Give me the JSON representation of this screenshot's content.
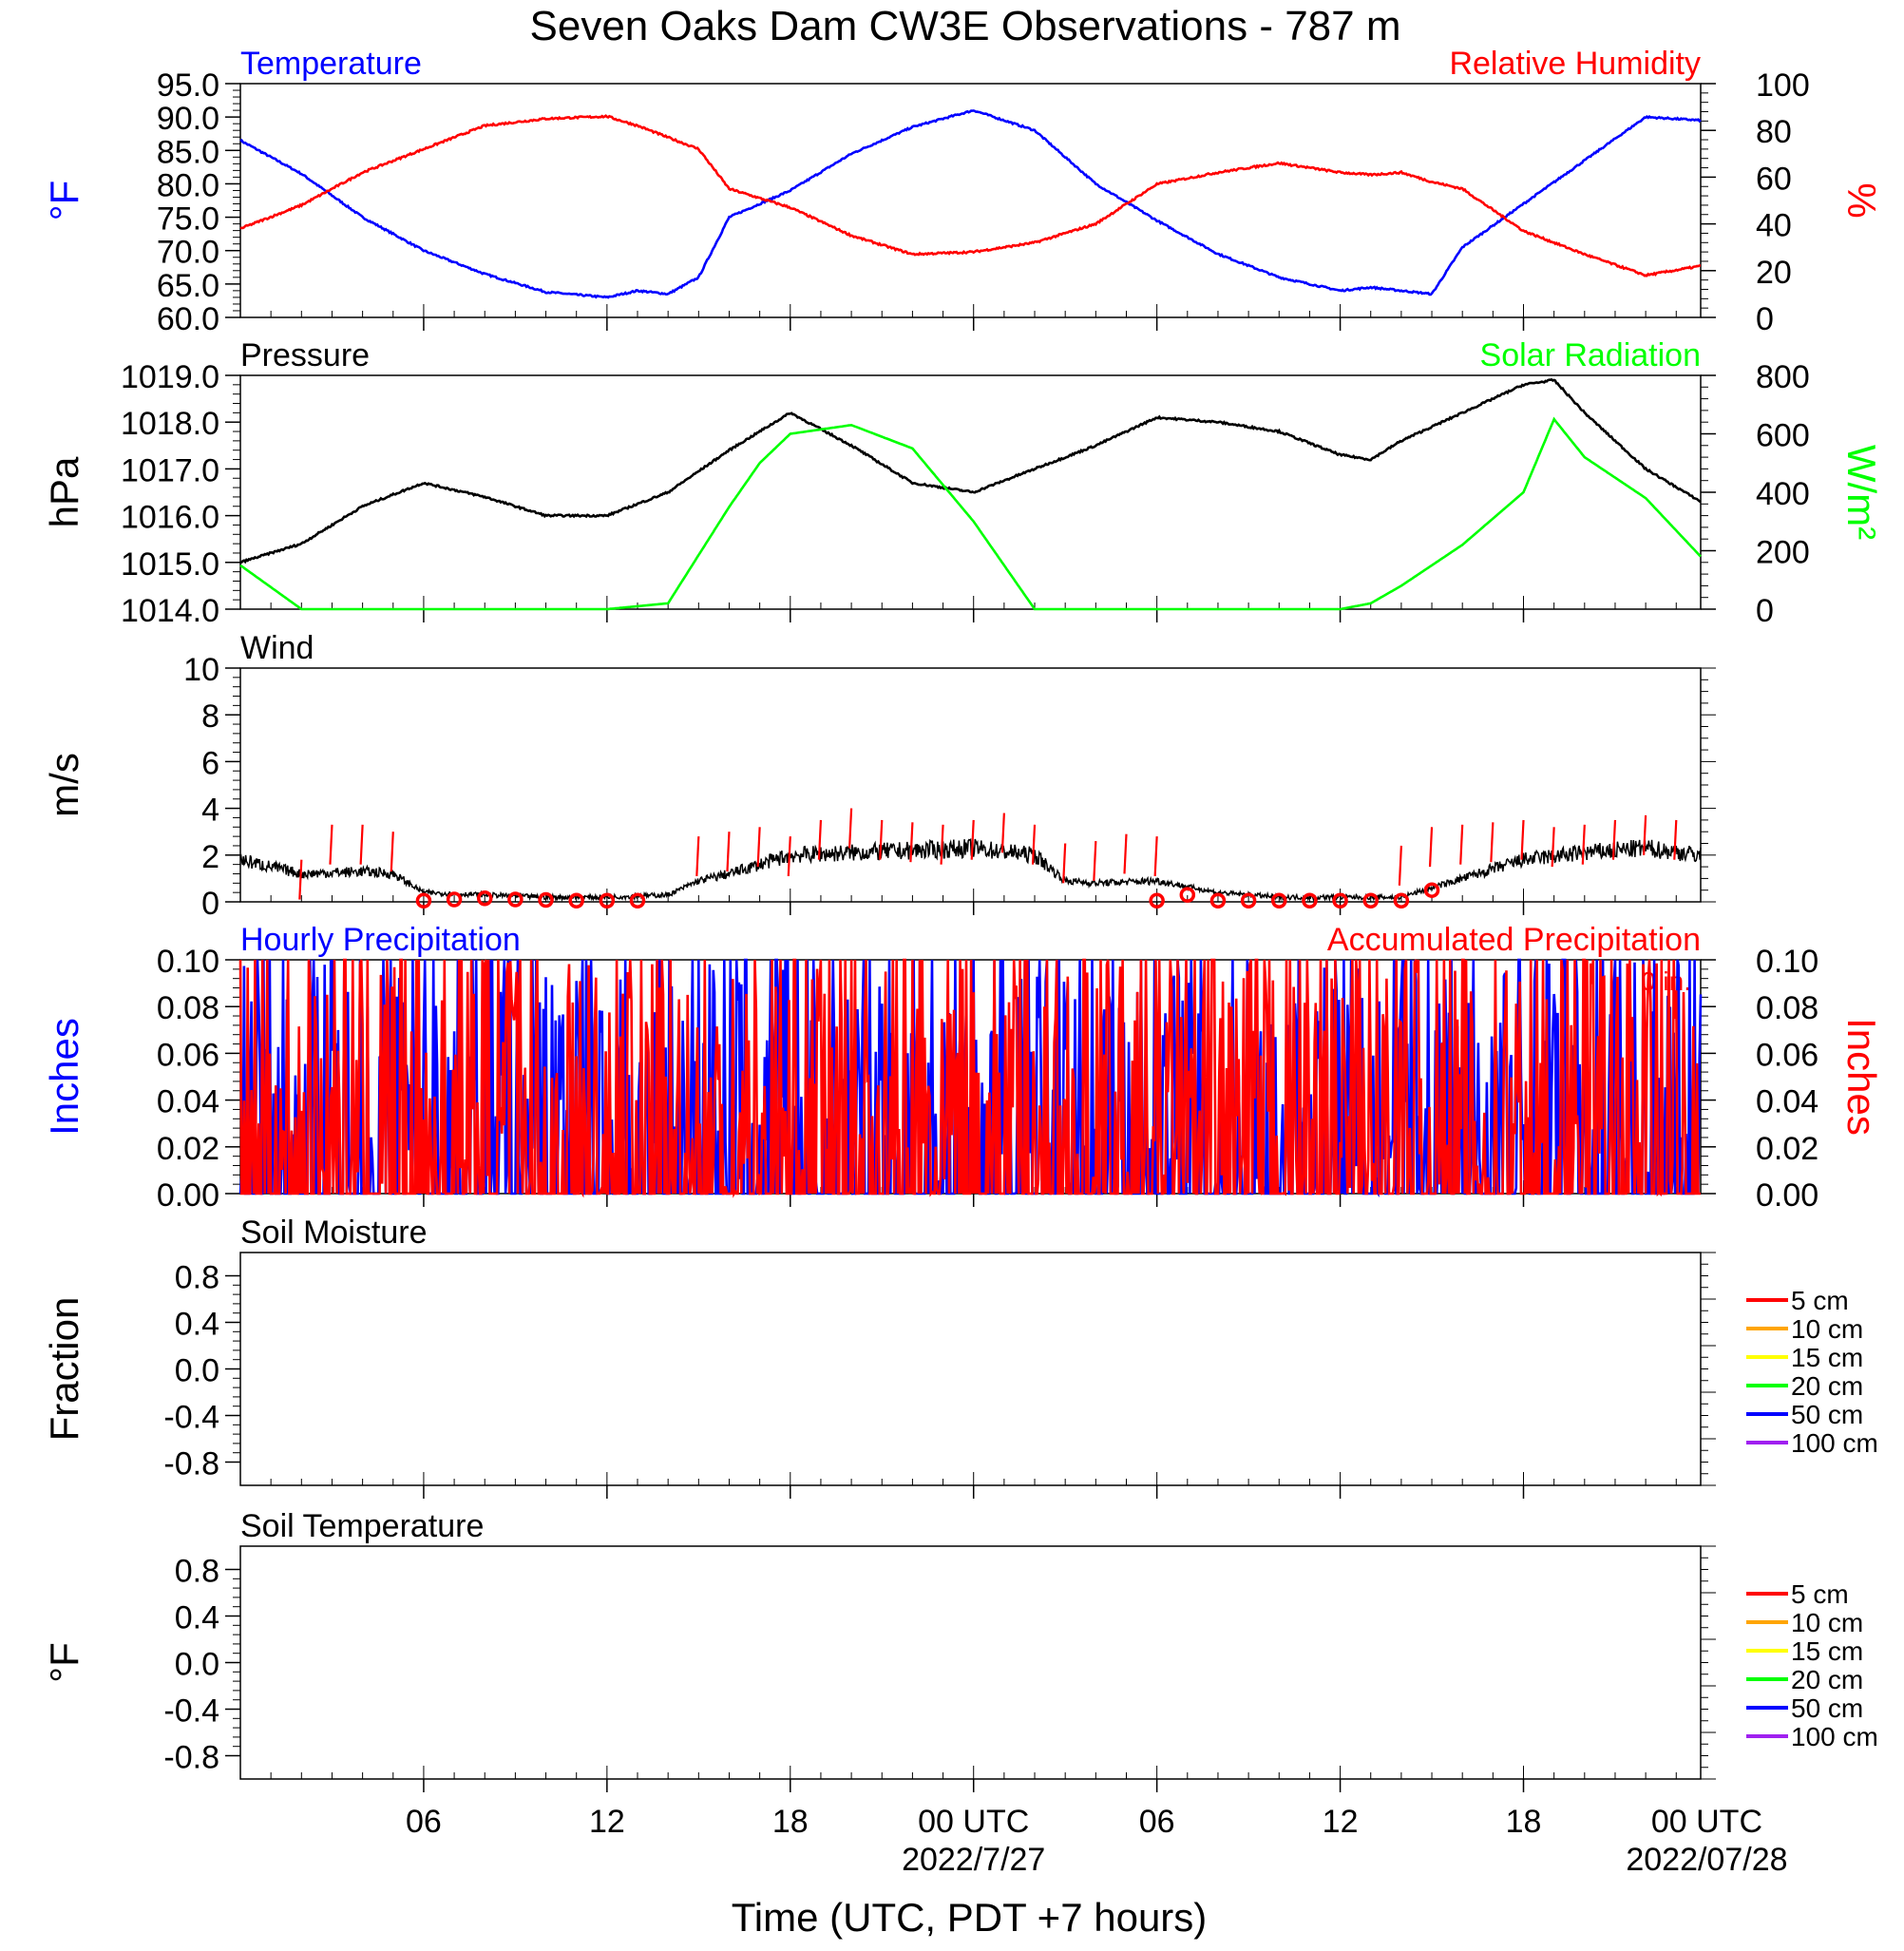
{
  "title": "Seven Oaks Dam CW3E Observations - 787 m",
  "xlabel": "Time (UTC, PDT +7 hours)",
  "x_ticks": [
    {
      "label": "06",
      "date": ""
    },
    {
      "label": "12",
      "date": ""
    },
    {
      "label": "18",
      "date": ""
    },
    {
      "label": "00 UTC",
      "date": "2022/7/27"
    },
    {
      "label": "06",
      "date": ""
    },
    {
      "label": "12",
      "date": ""
    },
    {
      "label": "18",
      "date": ""
    },
    {
      "label": "00 UTC",
      "date": "2022/07/28"
    }
  ],
  "colors": {
    "temperature": "#0000ff",
    "humidity": "#ff0000",
    "pressure": "#000000",
    "solar": "#00ff00",
    "wind": "#000000",
    "gust": "#ff0000",
    "hourly_precip": "#0000ff",
    "accum_precip": "#ff0000"
  },
  "chart_data": [
    {
      "type": "line",
      "left_title": "Temperature",
      "right_title": "Relative Humidity",
      "ylabel_left": "°F",
      "ylabel_right": "%",
      "ylim_left": [
        60.0,
        95.0
      ],
      "ylim_right": [
        0,
        100
      ],
      "yticks_left": [
        "60.0",
        "65.0",
        "70.0",
        "75.0",
        "80.0",
        "85.0",
        "90.0",
        "95.0"
      ],
      "yticks_right": [
        "0",
        "20",
        "40",
        "60",
        "80",
        "100"
      ],
      "x_hours": [
        0,
        2,
        4,
        6,
        8,
        10,
        12,
        13,
        14,
        15,
        16,
        18,
        20,
        22,
        24,
        26,
        28,
        30,
        32,
        34,
        36,
        37,
        38,
        39,
        40,
        42,
        44,
        46,
        47.8
      ],
      "series": [
        {
          "name": "Temperature",
          "axis": "left",
          "values": [
            86.5,
            81.5,
            75.0,
            70.0,
            66.5,
            63.8,
            63.0,
            64.0,
            63.5,
            66.0,
            75.0,
            79.0,
            84.5,
            88.5,
            91.0,
            88.0,
            80.0,
            74.5,
            69.5,
            66.0,
            64.0,
            64.5,
            64.0,
            63.5,
            70.5,
            77.0,
            83.5,
            90.0,
            89.5
          ]
        },
        {
          "name": "Relative Humidity",
          "axis": "right",
          "values": [
            38,
            48,
            62,
            72,
            82,
            85,
            86,
            82,
            77,
            72,
            55,
            47,
            35,
            27,
            28,
            32,
            40,
            57,
            62,
            66,
            62,
            61,
            62,
            58,
            55,
            37,
            27,
            18,
            22
          ]
        }
      ]
    },
    {
      "type": "line",
      "left_title": "Pressure",
      "right_title": "Solar Radiation",
      "ylabel_left": "hPa",
      "ylabel_right": "W/m²",
      "ylim_left": [
        1014.0,
        1019.0
      ],
      "ylim_right": [
        0,
        800
      ],
      "yticks_left": [
        "1014.0",
        "1015.0",
        "1016.0",
        "1017.0",
        "1018.0",
        "1019.0"
      ],
      "yticks_right": [
        "0",
        "200",
        "400",
        "600",
        "800"
      ],
      "x_hours": [
        0,
        2,
        4,
        6,
        8,
        10,
        12,
        14,
        16,
        17,
        18,
        20,
        22,
        24,
        26,
        28,
        30,
        32,
        34,
        36,
        37,
        38,
        40,
        42,
        43,
        44,
        46,
        47.8
      ],
      "series": [
        {
          "name": "Pressure",
          "axis": "left",
          "values": [
            1015.0,
            1015.4,
            1016.2,
            1016.7,
            1016.4,
            1016.0,
            1016.0,
            1016.5,
            1017.4,
            1017.8,
            1018.2,
            1017.5,
            1016.7,
            1016.5,
            1017.0,
            1017.5,
            1018.1,
            1018.0,
            1017.8,
            1017.3,
            1017.2,
            1017.6,
            1018.2,
            1018.8,
            1018.9,
            1018.2,
            1017.0,
            1016.3
          ]
        },
        {
          "name": "Solar Radiation",
          "axis": "right",
          "values": [
            150,
            0,
            0,
            0,
            0,
            0,
            0,
            20,
            350,
            500,
            600,
            630,
            550,
            300,
            0,
            0,
            0,
            0,
            0,
            0,
            20,
            80,
            220,
            400,
            650,
            520,
            380,
            180
          ]
        }
      ]
    },
    {
      "type": "line",
      "left_title": "Wind",
      "ylabel_left": "m/s",
      "ylim_left": [
        0,
        10
      ],
      "yticks_left": [
        "0",
        "2",
        "4",
        "6",
        "8",
        "10"
      ],
      "x_hours": [
        0,
        2,
        4,
        5,
        6,
        8,
        10,
        12,
        14,
        15,
        16,
        18,
        20,
        22,
        24,
        26,
        27,
        28,
        30,
        32,
        34,
        36,
        38,
        39,
        40,
        42,
        44,
        46,
        47.8
      ],
      "series": [
        {
          "name": "Wind speed",
          "axis": "left",
          "values": [
            1.8,
            1.2,
            1.3,
            1.2,
            0.4,
            0.3,
            0.2,
            0.2,
            0.3,
            0.9,
            1.2,
            2.0,
            2.1,
            2.2,
            2.3,
            2.0,
            0.9,
            0.8,
            0.9,
            0.4,
            0.2,
            0.2,
            0.2,
            0.6,
            1.0,
            1.8,
            2.1,
            2.3,
            2.0
          ]
        }
      ],
      "gust_hours": [
        2,
        3,
        4,
        5,
        15,
        16,
        17,
        18,
        19,
        20,
        21,
        22,
        23,
        24,
        25,
        26,
        27,
        28,
        29,
        30,
        38,
        39,
        40,
        41,
        42,
        43,
        44,
        45,
        46,
        47
      ],
      "gusts": [
        1.8,
        3.3,
        3.3,
        3.0,
        2.8,
        3.0,
        3.2,
        2.8,
        3.5,
        4.0,
        3.5,
        3.4,
        3.3,
        3.5,
        3.8,
        3.3,
        2.5,
        2.6,
        2.9,
        2.8,
        2.4,
        3.2,
        3.3,
        3.4,
        3.5,
        3.2,
        3.3,
        3.5,
        3.7,
        3.5
      ],
      "calm_hours": [
        6,
        7,
        8,
        9,
        10,
        11,
        12,
        13,
        30,
        31,
        32,
        33,
        34,
        35,
        36,
        37,
        38,
        39
      ],
      "calm_values": [
        0.05,
        0.1,
        0.15,
        0.1,
        0.08,
        0.05,
        0.05,
        0.05,
        0.05,
        0.3,
        0.05,
        0.05,
        0.05,
        0.05,
        0.05,
        0.05,
        0.05,
        0.5
      ]
    },
    {
      "type": "line",
      "left_title": "Hourly Precipitation",
      "right_title": "Accumulated Precipitation",
      "annotation": "0 in.",
      "ylabel_left": "Inches",
      "ylabel_right": "Inches",
      "ylim_left": [
        0.0,
        0.1
      ],
      "ylim_right": [
        0.0,
        0.1
      ],
      "yticks_left": [
        "0.00",
        "0.02",
        "0.04",
        "0.06",
        "0.08",
        "0.10"
      ],
      "yticks_right": [
        "0.00",
        "0.02",
        "0.04",
        "0.06",
        "0.08",
        "0.10"
      ],
      "x_hours": [
        0,
        47.8
      ],
      "series": [
        {
          "name": "Hourly Precipitation",
          "axis": "left",
          "values": [
            0.0,
            0.0
          ]
        },
        {
          "name": "Accumulated Precipitation",
          "axis": "right",
          "values": [
            0.0,
            0.0
          ]
        }
      ]
    },
    {
      "type": "line",
      "left_title": "Soil Moisture",
      "ylabel_left": "Fraction",
      "ylim_left": [
        -1.0,
        1.0
      ],
      "yticks_left": [
        "-0.8",
        "-0.4",
        "0.0",
        "0.4",
        "0.8"
      ],
      "legend": [
        {
          "name": "5 cm",
          "color": "#ff0000"
        },
        {
          "name": "10 cm",
          "color": "#ffa500"
        },
        {
          "name": "15 cm",
          "color": "#ffff00"
        },
        {
          "name": "20 cm",
          "color": "#00ff00"
        },
        {
          "name": "50 cm",
          "color": "#0000ff"
        },
        {
          "name": "100 cm",
          "color": "#a020f0"
        }
      ],
      "series": []
    },
    {
      "type": "line",
      "left_title": "Soil Temperature",
      "ylabel_left": "°F",
      "ylim_left": [
        -1.0,
        1.0
      ],
      "yticks_left": [
        "-0.8",
        "-0.4",
        "0.0",
        "0.4",
        "0.8"
      ],
      "legend": [
        {
          "name": "5 cm",
          "color": "#ff0000"
        },
        {
          "name": "10 cm",
          "color": "#ffa500"
        },
        {
          "name": "15 cm",
          "color": "#ffff00"
        },
        {
          "name": "20 cm",
          "color": "#00ff00"
        },
        {
          "name": "50 cm",
          "color": "#0000ff"
        },
        {
          "name": "100 cm",
          "color": "#a020f0"
        }
      ],
      "series": []
    }
  ]
}
